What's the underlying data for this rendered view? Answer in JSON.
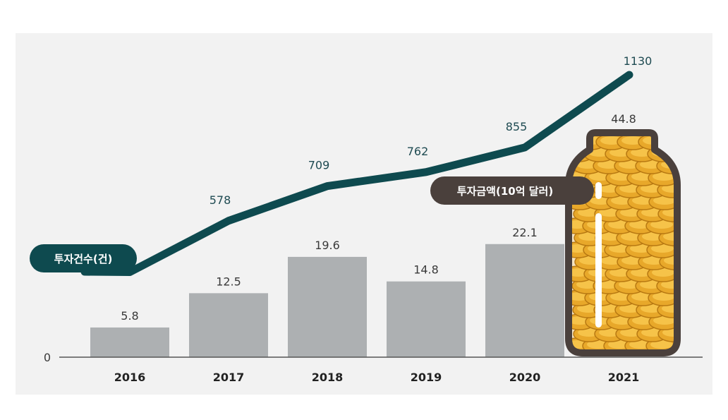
{
  "chart_data": {
    "type": "bar",
    "categories": [
      "2016",
      "2017",
      "2018",
      "2019",
      "2020",
      "2021"
    ],
    "series": [
      {
        "name": "투자금액(10억 달러)",
        "type": "bar",
        "values": [
          5.8,
          12.5,
          19.6,
          14.8,
          22.1,
          44.8
        ]
      },
      {
        "name": "투자건수(건)",
        "type": "line",
        "values": [
          384,
          578,
          709,
          762,
          855,
          1130
        ]
      }
    ],
    "y_axis_tick": "0",
    "colors": {
      "bar": "#adb0b2",
      "line": "#0e4a4f",
      "jar": "#4a403c",
      "coin": "#e8a82a",
      "panel": "#f2f2f2"
    },
    "icons": [
      "coin-jar-icon"
    ]
  }
}
